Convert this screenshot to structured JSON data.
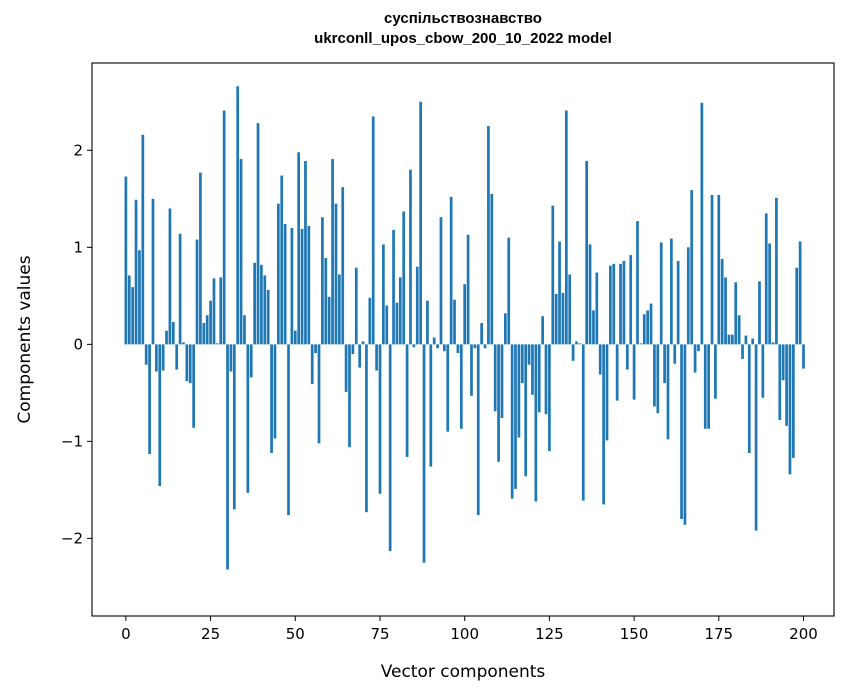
{
  "chart_data": {
    "type": "bar",
    "title": "суспільствознавство",
    "subtitle": "ukrconll_upos_cbow_200_10_2022 model",
    "xlabel": "Vector components",
    "ylabel": "Components values",
    "xlim": [
      -10,
      209
    ],
    "ylim": [
      -2.8,
      2.9
    ],
    "xticks": [
      0,
      25,
      50,
      75,
      100,
      125,
      150,
      175,
      200
    ],
    "yticks": [
      -2,
      -1,
      0,
      1,
      2
    ],
    "grid": false,
    "bar_color": "#1f77b4",
    "values": [
      1.73,
      0.71,
      0.59,
      1.49,
      0.97,
      2.16,
      -0.21,
      -1.13,
      1.5,
      -0.28,
      -1.46,
      -0.27,
      0.14,
      1.4,
      0.23,
      -0.26,
      1.14,
      0.02,
      -0.38,
      -0.4,
      -0.86,
      1.08,
      1.77,
      0.22,
      0.3,
      0.45,
      0.68,
      0.01,
      0.69,
      2.41,
      -2.32,
      -0.28,
      -1.7,
      2.66,
      1.91,
      0.3,
      -1.53,
      -0.34,
      0.84,
      2.28,
      0.82,
      0.71,
      0.56,
      -1.12,
      -0.97,
      1.45,
      1.74,
      1.24,
      -1.76,
      1.2,
      0.14,
      1.98,
      1.19,
      1.89,
      1.22,
      -0.41,
      -0.09,
      -1.02,
      1.31,
      0.89,
      0.49,
      1.91,
      1.45,
      0.72,
      1.62,
      -0.49,
      -1.06,
      -0.1,
      0.79,
      -0.24,
      0.03,
      -1.73,
      0.48,
      2.35,
      -0.27,
      -1.54,
      1.03,
      0.4,
      -2.13,
      1.18,
      0.43,
      0.69,
      1.37,
      -1.16,
      1.8,
      -0.03,
      0.8,
      2.5,
      -2.25,
      0.45,
      -1.26,
      0.07,
      -0.04,
      1.31,
      -0.07,
      -0.9,
      1.52,
      0.46,
      -0.09,
      -0.87,
      0.62,
      1.13,
      -0.53,
      -0.04,
      -1.76,
      0.22,
      -0.04,
      2.25,
      1.55,
      -0.69,
      -1.21,
      -0.76,
      0.32,
      1.1,
      -1.59,
      -1.49,
      -0.96,
      -0.4,
      -1.36,
      -0.21,
      -0.52,
      -1.62,
      -0.7,
      0.29,
      -0.72,
      -1.1,
      1.43,
      0.52,
      1.06,
      0.53,
      2.41,
      0.72,
      -0.17,
      0.03,
      0.01,
      -1.61,
      1.89,
      1.03,
      0.35,
      0.74,
      -0.31,
      -1.65,
      -0.99,
      0.81,
      0.83,
      -0.58,
      0.83,
      0.86,
      -0.26,
      0.92,
      -0.57,
      1.27,
      0.01,
      0.31,
      0.35,
      0.42,
      -0.64,
      -0.71,
      1.05,
      -0.4,
      -0.98,
      1.09,
      -0.2,
      0.86,
      -1.8,
      -1.86,
      1.0,
      1.59,
      -0.29,
      -0.07,
      2.49,
      -0.87,
      -0.87,
      1.54,
      -0.56,
      1.54,
      0.88,
      0.69,
      0.1,
      0.1,
      0.64,
      0.3,
      -0.15,
      0.09,
      -1.12,
      0.06,
      -1.92,
      0.65,
      -0.55,
      1.35,
      1.04,
      0.02,
      1.51,
      -0.78,
      -0.37,
      -0.84,
      -1.34,
      -1.17,
      0.79,
      1.06,
      -0.25
    ]
  }
}
